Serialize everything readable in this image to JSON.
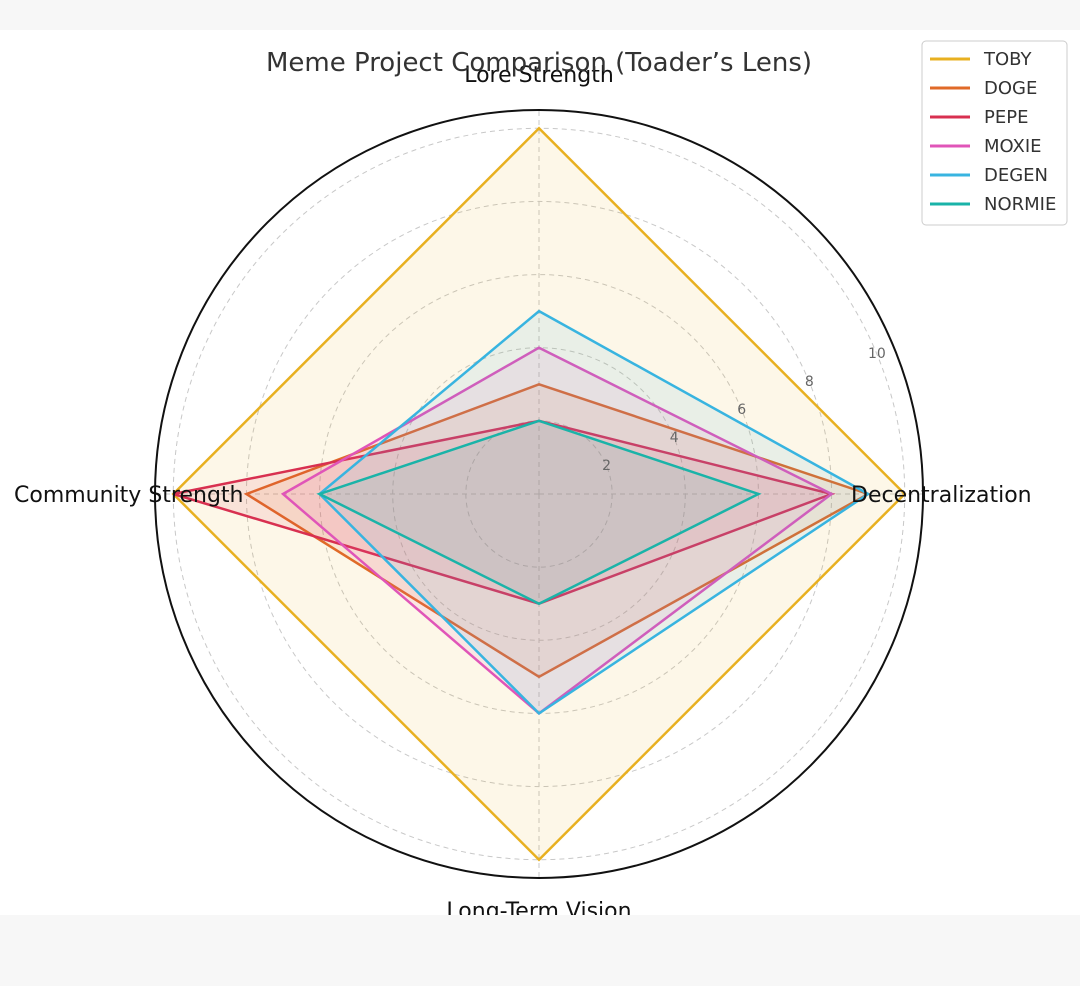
{
  "chart_data": {
    "type": "radar",
    "title": "Meme Project Comparison (Toader’s Lens)",
    "axes": [
      "Lore Strength",
      "Decentralization",
      "Long-Term Vision",
      "Community Strength"
    ],
    "rlim": [
      0,
      10.5
    ],
    "rticks": [
      2,
      4,
      6,
      8,
      10
    ],
    "grid": true,
    "legend_placement": "top-right",
    "series": [
      {
        "name": "TOBY",
        "color": "#e8b020",
        "values": [
          10,
          10,
          10,
          10
        ]
      },
      {
        "name": "DOGE",
        "color": "#e06a28",
        "values": [
          3,
          9,
          5,
          8
        ]
      },
      {
        "name": "PEPE",
        "color": "#d83050",
        "values": [
          2,
          8,
          3,
          10
        ]
      },
      {
        "name": "MOXIE",
        "color": "#e055b8",
        "values": [
          4,
          8,
          6,
          7
        ]
      },
      {
        "name": "DEGEN",
        "color": "#38b4e0",
        "values": [
          5,
          9,
          6,
          6
        ]
      },
      {
        "name": "NORMIE",
        "color": "#1ab3a8",
        "values": [
          2,
          6,
          3,
          6
        ]
      }
    ]
  }
}
